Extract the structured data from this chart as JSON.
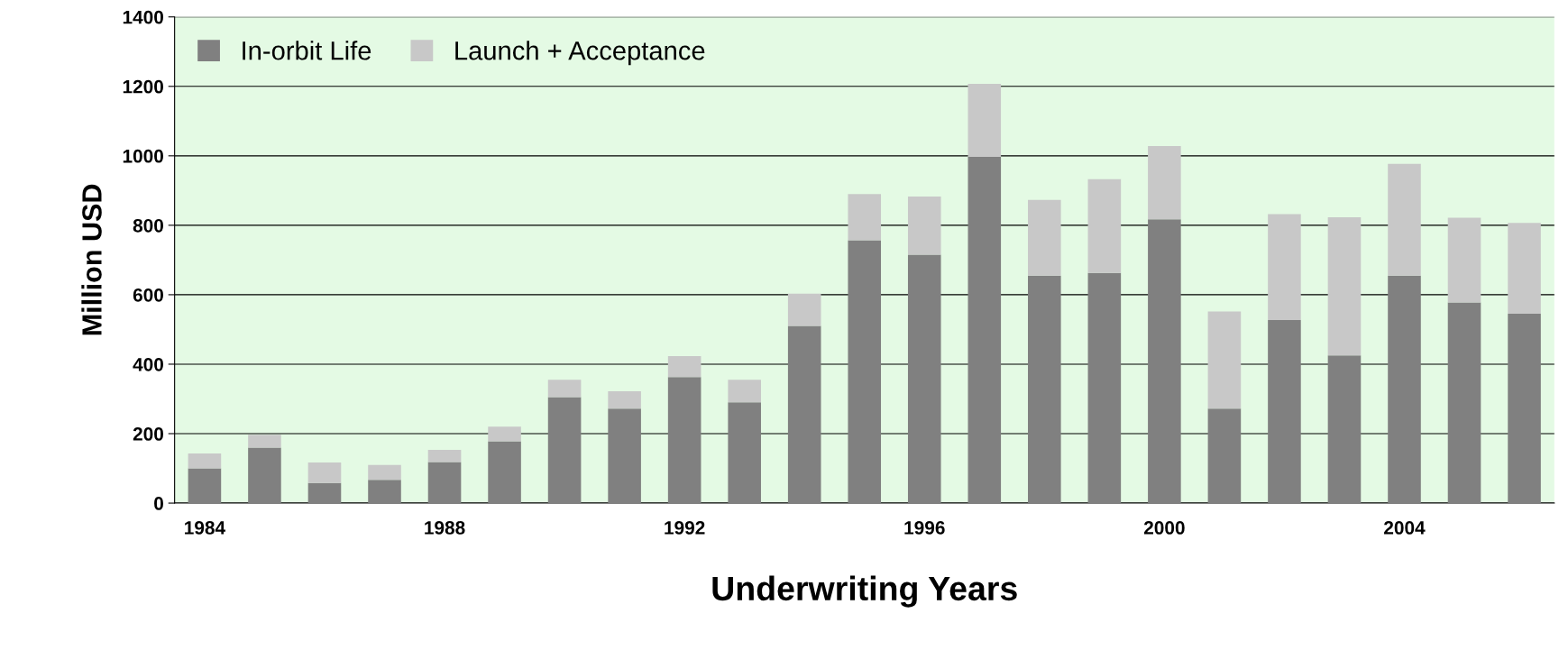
{
  "chart_data": {
    "type": "bar",
    "stacked": true,
    "xlabel": "Underwriting Years",
    "ylabel": "Million USD",
    "categories": [
      "1984",
      null,
      null,
      null,
      "1988",
      null,
      null,
      null,
      "1992",
      null,
      null,
      null,
      "1996",
      null,
      null,
      null,
      "2000",
      null,
      null,
      null,
      "2004",
      null,
      null
    ],
    "series": [
      {
        "name": "In-orbit Life",
        "color": "#808080",
        "values": [
          100,
          160,
          58,
          67,
          118,
          178,
          305,
          272,
          363,
          290,
          510,
          757,
          715,
          997,
          655,
          663,
          817,
          272,
          527,
          425,
          655,
          578,
          545
        ]
      },
      {
        "name": "Launch + Acceptance",
        "color": "#c8c8c8",
        "values": [
          43,
          37,
          59,
          43,
          35,
          42,
          50,
          50,
          60,
          65,
          93,
          133,
          168,
          210,
          218,
          270,
          211,
          280,
          305,
          398,
          322,
          244,
          262
        ]
      }
    ],
    "ylim": [
      0,
      1400
    ],
    "yticks": [
      0,
      200,
      400,
      600,
      800,
      1000,
      1200,
      1400
    ],
    "grid": "y",
    "legend": "top left"
  }
}
